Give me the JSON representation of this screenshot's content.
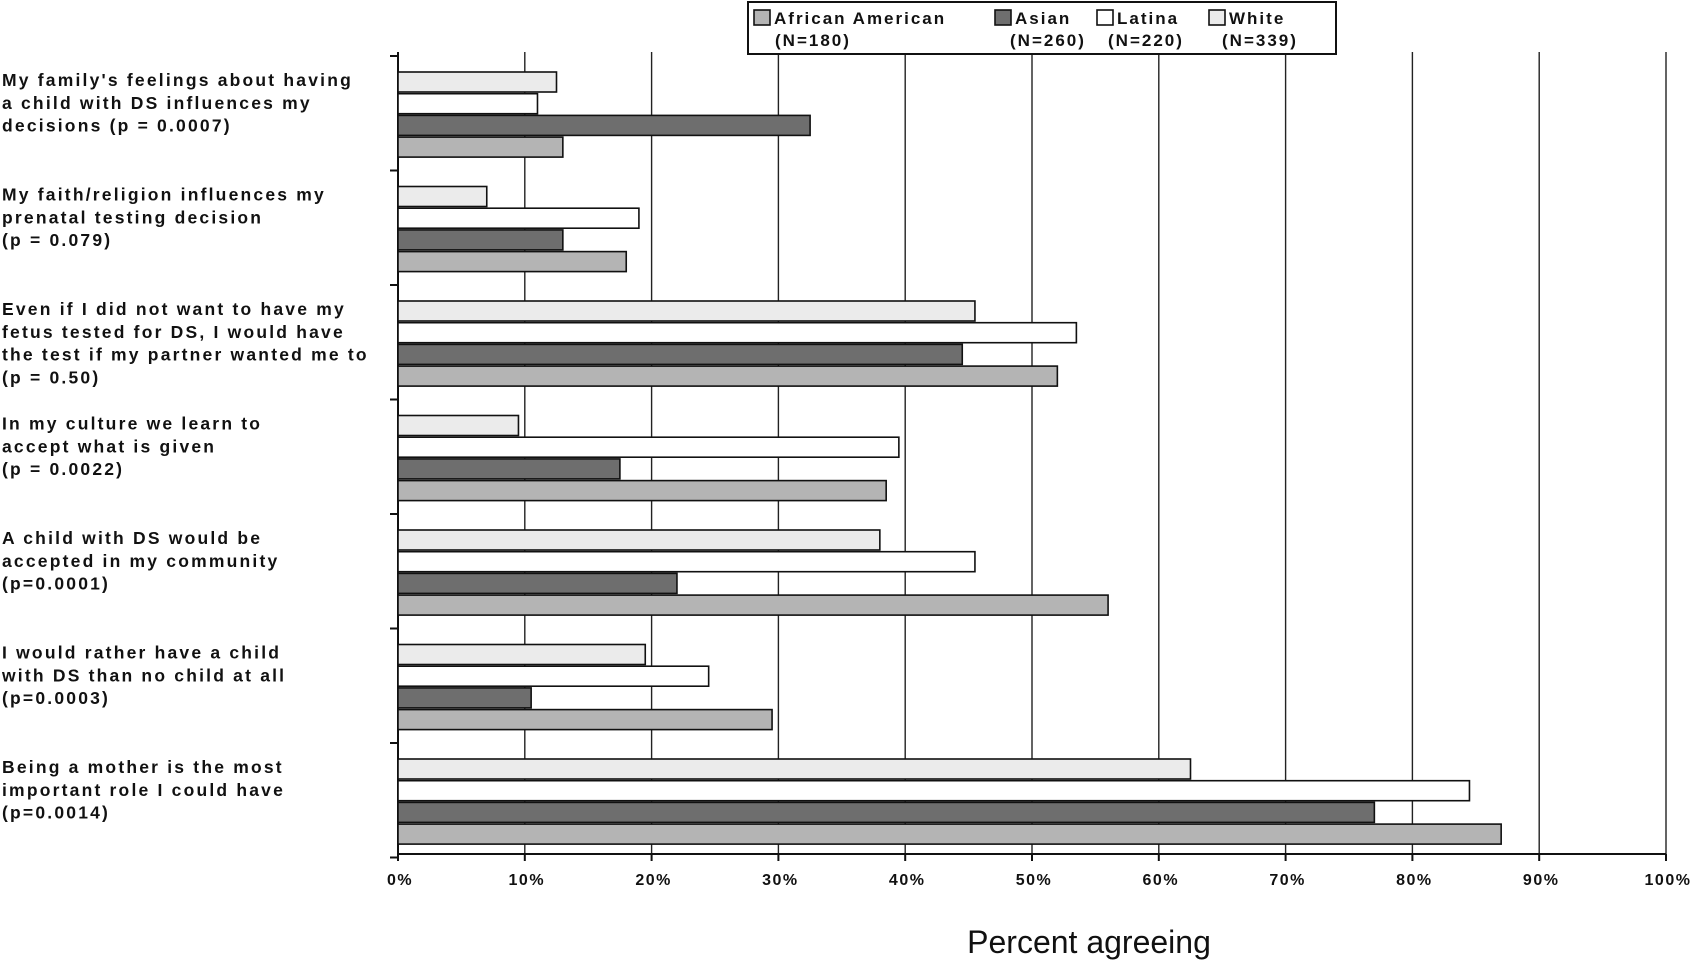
{
  "chart_data": {
    "type": "bar",
    "orientation": "horizontal",
    "xlabel": "Percent agreeing",
    "xlim": [
      0,
      100
    ],
    "xticks": [
      "0%",
      "10%",
      "20%",
      "30%",
      "40%",
      "50%",
      "60%",
      "70%",
      "80%",
      "90%",
      "100%"
    ],
    "grid": true,
    "legend_position": "top",
    "categories": [
      [
        "My family's feelings about having",
        "a child with DS influences my",
        "decisions (p = 0.0007)"
      ],
      [
        "My faith/religion influences my",
        "prenatal testing decision",
        "(p = 0.079)"
      ],
      [
        "Even if I did not want to have my",
        "fetus tested for DS, I would have",
        "the test if my partner wanted me to",
        "(p = 0.50)"
      ],
      [
        "In my culture we learn to",
        "accept what is given",
        "(p = 0.0022)"
      ],
      [
        "A child with DS would be",
        "accepted in my community",
        "(p=0.0001)"
      ],
      [
        "I would rather have a child",
        "with DS than no child at all",
        "(p=0.0003)"
      ],
      [
        "Being a mother is the most",
        "important role I could have",
        "(p=0.0014)"
      ]
    ],
    "series": [
      {
        "name": "White",
        "n_label": "(N=339)",
        "color": "#ebebeb",
        "values": [
          12.5,
          7,
          45.5,
          9.5,
          38,
          19.5,
          62.5
        ]
      },
      {
        "name": "Latina",
        "n_label": "(N=220)",
        "color": "#ffffff",
        "values": [
          11,
          19,
          53.5,
          39.5,
          45.5,
          24.5,
          84.5
        ]
      },
      {
        "name": "Asian",
        "n_label": "(N=260)",
        "color": "#6e6e6e",
        "values": [
          32.5,
          13,
          44.5,
          17.5,
          22,
          10.5,
          77
        ]
      },
      {
        "name": "African American",
        "n_label": "(N=180)",
        "color": "#b4b4b4",
        "values": [
          13,
          18,
          52,
          38.5,
          56,
          29.5,
          87
        ]
      }
    ],
    "legend_order": [
      "African American",
      "Asian",
      "Latina",
      "White"
    ]
  }
}
